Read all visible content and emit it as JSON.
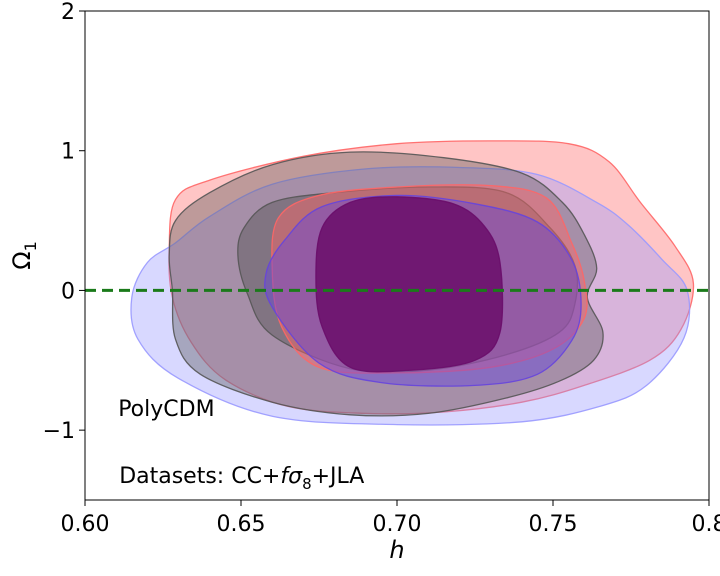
{
  "chart_data": {
    "type": "contour",
    "xlabel": "h",
    "ylabel": "Ω",
    "ylabel_subscript": "1",
    "xlim": [
      0.6,
      0.8
    ],
    "ylim": [
      -1.5,
      2.0
    ],
    "x_ticks": [
      0.6,
      0.65,
      0.7,
      0.75,
      0.8
    ],
    "x_tick_labels": [
      "0.60",
      "0.65",
      "0.70",
      "0.75",
      "0.8"
    ],
    "y_ticks": [
      2,
      1,
      0,
      -1
    ],
    "y_tick_labels": [
      "2",
      "1",
      "0",
      "−1"
    ],
    "reference_line": {
      "y": 0,
      "style": "dashed",
      "color": "#1a7a1a"
    },
    "annotations": [
      {
        "text": "PolyCDM",
        "x": 0.61,
        "y": -0.84
      },
      {
        "prefix": "Datasets: CC+",
        "italic": "f",
        "sigma": "σ",
        "sub": "8",
        "suffix": "+JLA",
        "x": 0.61,
        "y": -1.32
      }
    ],
    "contours": [
      {
        "color": "#ff6666",
        "region": "outer",
        "points": [
          [
            0.629,
            0.65
          ],
          [
            0.64,
            0.79
          ],
          [
            0.67,
            0.96
          ],
          [
            0.7,
            1.05
          ],
          [
            0.73,
            1.07
          ],
          [
            0.755,
            1.05
          ],
          [
            0.768,
            0.92
          ],
          [
            0.778,
            0.63
          ],
          [
            0.789,
            0.32
          ],
          [
            0.795,
            0.05
          ],
          [
            0.791,
            -0.28
          ],
          [
            0.781,
            -0.5
          ],
          [
            0.76,
            -0.68
          ],
          [
            0.74,
            -0.8
          ],
          [
            0.715,
            -0.87
          ],
          [
            0.69,
            -0.88
          ],
          [
            0.665,
            -0.83
          ],
          [
            0.645,
            -0.64
          ],
          [
            0.634,
            -0.37
          ],
          [
            0.628,
            -0.05
          ],
          [
            0.627,
            0.3
          ]
        ]
      },
      {
        "color": "#9999ff",
        "region": "outer",
        "points": [
          [
            0.629,
            0.34
          ],
          [
            0.64,
            0.53
          ],
          [
            0.66,
            0.76
          ],
          [
            0.69,
            0.87
          ],
          [
            0.72,
            0.88
          ],
          [
            0.745,
            0.83
          ],
          [
            0.764,
            0.63
          ],
          [
            0.774,
            0.47
          ],
          [
            0.785,
            0.22
          ],
          [
            0.793,
            0.0
          ],
          [
            0.792,
            -0.34
          ],
          [
            0.78,
            -0.68
          ],
          [
            0.765,
            -0.83
          ],
          [
            0.74,
            -0.94
          ],
          [
            0.7,
            -0.96
          ],
          [
            0.66,
            -0.9
          ],
          [
            0.63,
            -0.63
          ],
          [
            0.617,
            -0.35
          ],
          [
            0.615,
            -0.05
          ],
          [
            0.62,
            0.2
          ]
        ]
      },
      {
        "color": "#555555",
        "region": "outer",
        "points": [
          [
            0.629,
            0.5
          ],
          [
            0.64,
            0.7
          ],
          [
            0.66,
            0.9
          ],
          [
            0.685,
            0.99
          ],
          [
            0.715,
            0.95
          ],
          [
            0.74,
            0.84
          ],
          [
            0.753,
            0.63
          ],
          [
            0.76,
            0.4
          ],
          [
            0.764,
            0.16
          ],
          [
            0.761,
            -0.05
          ],
          [
            0.766,
            -0.3
          ],
          [
            0.763,
            -0.5
          ],
          [
            0.752,
            -0.65
          ],
          [
            0.735,
            -0.77
          ],
          [
            0.71,
            -0.88
          ],
          [
            0.685,
            -0.89
          ],
          [
            0.66,
            -0.8
          ],
          [
            0.637,
            -0.6
          ],
          [
            0.629,
            -0.35
          ],
          [
            0.628,
            0.0
          ],
          [
            0.627,
            0.25
          ]
        ]
      },
      {
        "color": "#555555",
        "region": "inner",
        "points": [
          [
            0.651,
            0.45
          ],
          [
            0.66,
            0.63
          ],
          [
            0.68,
            0.7
          ],
          [
            0.71,
            0.74
          ],
          [
            0.735,
            0.7
          ],
          [
            0.749,
            0.45
          ],
          [
            0.757,
            0.18
          ],
          [
            0.757,
            -0.1
          ],
          [
            0.752,
            -0.3
          ],
          [
            0.735,
            -0.46
          ],
          [
            0.71,
            -0.57
          ],
          [
            0.685,
            -0.56
          ],
          [
            0.66,
            -0.32
          ],
          [
            0.652,
            -0.02
          ],
          [
            0.649,
            0.25
          ]
        ]
      },
      {
        "color": "#ff6666",
        "region": "inner",
        "points": [
          [
            0.662,
            0.52
          ],
          [
            0.675,
            0.68
          ],
          [
            0.7,
            0.74
          ],
          [
            0.73,
            0.75
          ],
          [
            0.748,
            0.66
          ],
          [
            0.756,
            0.34
          ],
          [
            0.76,
            0.07
          ],
          [
            0.76,
            -0.2
          ],
          [
            0.75,
            -0.42
          ],
          [
            0.73,
            -0.55
          ],
          [
            0.7,
            -0.59
          ],
          [
            0.675,
            -0.55
          ],
          [
            0.663,
            -0.26
          ],
          [
            0.66,
            0.15
          ]
        ]
      },
      {
        "color": "#6644dd",
        "region": "inner",
        "points": [
          [
            0.664,
            0.36
          ],
          [
            0.676,
            0.6
          ],
          [
            0.7,
            0.68
          ],
          [
            0.725,
            0.62
          ],
          [
            0.745,
            0.49
          ],
          [
            0.756,
            0.22
          ],
          [
            0.759,
            -0.1
          ],
          [
            0.756,
            -0.36
          ],
          [
            0.745,
            -0.6
          ],
          [
            0.725,
            -0.68
          ],
          [
            0.695,
            -0.66
          ],
          [
            0.675,
            -0.52
          ],
          [
            0.66,
            -0.12
          ],
          [
            0.658,
            0.12
          ]
        ]
      },
      {
        "color": "#6a0d6a",
        "region": "core",
        "points": [
          [
            0.676,
            0.45
          ],
          [
            0.685,
            0.63
          ],
          [
            0.7,
            0.67
          ],
          [
            0.718,
            0.62
          ],
          [
            0.728,
            0.46
          ],
          [
            0.733,
            0.2
          ],
          [
            0.733,
            -0.3
          ],
          [
            0.725,
            -0.5
          ],
          [
            0.705,
            -0.57
          ],
          [
            0.685,
            -0.55
          ],
          [
            0.676,
            -0.26
          ],
          [
            0.674,
            0.1
          ]
        ]
      }
    ]
  }
}
